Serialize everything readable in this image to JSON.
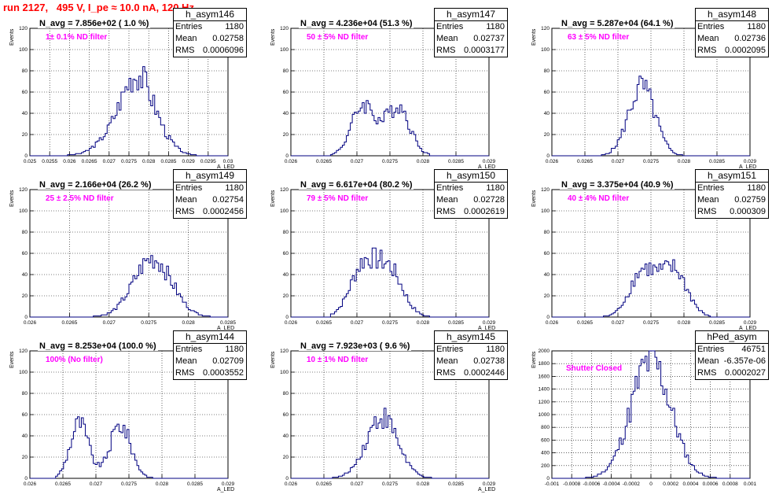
{
  "header": {
    "run_title": "run 2127,   495 V, I_pe ≈ 10.0 nA, 120 Hz"
  },
  "colors": {
    "title": "#ff0000",
    "note": "#ff00ff",
    "line": "#000080"
  },
  "chart_data": [
    {
      "type": "histogram",
      "name": "h_asym146",
      "stats": {
        "entries": "1180",
        "mean": "0.02758",
        "rms": "0.0006096"
      },
      "n_avg": "N_avg = 7.856e+02 ( 1.0 %)",
      "note": "1± 0.1% ND filter",
      "xlabel": "A_LED",
      "ylabel": "Events",
      "xlim": [
        0.025,
        0.03
      ],
      "ylim": [
        0,
        120
      ],
      "xticks": [
        "0.025",
        "0.0255",
        "0.026",
        "0.0265",
        "0.027",
        "0.0275",
        "0.028",
        "0.0285",
        "0.029",
        "0.0295",
        "0.03"
      ],
      "yticks": [
        "0",
        "20",
        "40",
        "60",
        "80",
        "100",
        "120"
      ],
      "grid": true,
      "shape": {
        "peaks": [
          [
            0.0274,
            30,
            0.0005
          ],
          [
            0.0277,
            40,
            0.00035
          ],
          [
            0.0281,
            20,
            0.0004
          ]
        ],
        "range": [
          0.0259,
          0.0295
        ]
      }
    },
    {
      "type": "histogram",
      "name": "h_asym147",
      "stats": {
        "entries": "1180",
        "mean": "0.02737",
        "rms": "0.0003177"
      },
      "n_avg": "N_avg = 4.236e+04 (51.3 %)",
      "note": "50 ± 5% ND filter",
      "xlabel": "A_LED",
      "ylabel": "Events",
      "xlim": [
        0.026,
        0.029
      ],
      "ylim": [
        0,
        120
      ],
      "xticks": [
        "0.026",
        "0.0265",
        "0.027",
        "0.0275",
        "0.028",
        "0.0285",
        "0.029"
      ],
      "yticks": [
        "0",
        "20",
        "40",
        "60",
        "80",
        "100",
        "120"
      ],
      "grid": true,
      "shape": {
        "peaks": [
          [
            0.0271,
            48,
            0.00018
          ],
          [
            0.02762,
            47,
            0.00018
          ]
        ],
        "range": [
          0.0266,
          0.0281
        ]
      }
    },
    {
      "type": "histogram",
      "name": "h_asym148",
      "stats": {
        "entries": "1180",
        "mean": "0.02736",
        "rms": "0.0002095"
      },
      "n_avg": "N_avg = 5.287e+04 (64.1 %)",
      "note": "63 ± 5% ND filter",
      "xlabel": "A_LED",
      "ylabel": "Events",
      "xlim": [
        0.026,
        0.029
      ],
      "ylim": [
        0,
        120
      ],
      "xticks": [
        "0.026",
        "0.0265",
        "0.027",
        "0.0275",
        "0.028",
        "0.0285",
        "0.029"
      ],
      "yticks": [
        "0",
        "20",
        "40",
        "60",
        "80",
        "100",
        "120"
      ],
      "grid": true,
      "shape": {
        "peaks": [
          [
            0.02736,
            65,
            0.0002
          ]
        ],
        "range": [
          0.0267,
          0.0281
        ]
      }
    },
    {
      "type": "histogram",
      "name": "h_asym149",
      "stats": {
        "entries": "1180",
        "mean": "0.02754",
        "rms": "0.0002456"
      },
      "n_avg": "N_avg = 2.166e+04 (26.2 %)",
      "note": "25 ± 2.5% ND filter",
      "xlabel": "A_LED",
      "ylabel": "Events",
      "xlim": [
        0.026,
        0.0285
      ],
      "ylim": [
        0,
        120
      ],
      "xticks": [
        "0.026",
        "0.0265",
        "0.027",
        "0.0275",
        "0.028",
        "0.0285"
      ],
      "yticks": [
        "0",
        "20",
        "40",
        "60",
        "80",
        "100",
        "120"
      ],
      "grid": true,
      "shape": {
        "peaks": [
          [
            0.02755,
            55,
            0.00024
          ]
        ],
        "range": [
          0.0268,
          0.0283
        ]
      }
    },
    {
      "type": "histogram",
      "name": "h_asym150",
      "stats": {
        "entries": "1180",
        "mean": "0.02728",
        "rms": "0.0002619"
      },
      "n_avg": "N_avg = 6.617e+04 (80.2 %)",
      "note": "79 ± 5% ND filter",
      "xlabel": "A_LED",
      "ylabel": "Events",
      "xlim": [
        0.026,
        0.029
      ],
      "ylim": [
        0,
        120
      ],
      "xticks": [
        "0.026",
        "0.0265",
        "0.027",
        "0.0275",
        "0.028",
        "0.0285",
        "0.029"
      ],
      "yticks": [
        "0",
        "20",
        "40",
        "60",
        "80",
        "100",
        "120"
      ],
      "grid": true,
      "shape": {
        "peaks": [
          [
            0.0271,
            48,
            0.0002
          ],
          [
            0.0275,
            42,
            0.0002
          ]
        ],
        "range": [
          0.0266,
          0.0281
        ]
      }
    },
    {
      "type": "histogram",
      "name": "h_asym151",
      "stats": {
        "entries": "1180",
        "mean": "0.02759",
        "rms": "0.000309"
      },
      "n_avg": "N_avg = 3.375e+04 (40.9 %)",
      "note": "40 ± 4% ND filter",
      "xlabel": "A_LED",
      "ylabel": "Events",
      "xlim": [
        0.026,
        0.029
      ],
      "ylim": [
        0,
        120
      ],
      "xticks": [
        "0.026",
        "0.0265",
        "0.027",
        "0.0275",
        "0.028",
        "0.0285",
        "0.029"
      ],
      "yticks": [
        "0",
        "20",
        "40",
        "60",
        "80",
        "100",
        "120"
      ],
      "grid": true,
      "shape": {
        "peaks": [
          [
            0.02738,
            43,
            0.0002
          ],
          [
            0.02785,
            43,
            0.0002
          ]
        ],
        "range": [
          0.0267,
          0.0284
        ]
      }
    },
    {
      "type": "histogram",
      "name": "h_asym144",
      "stats": {
        "entries": "1180",
        "mean": "0.02709",
        "rms": "0.0003552"
      },
      "n_avg": "N_avg = 8.253e+04 (100.0 %)",
      "note": "100% (No filter)",
      "xlabel": "A_LED",
      "ylabel": "Events",
      "xlim": [
        0.026,
        0.029
      ],
      "ylim": [
        0,
        120
      ],
      "xticks": [
        "0.026",
        "0.0265",
        "0.027",
        "0.0275",
        "0.028",
        "0.0285",
        "0.029"
      ],
      "yticks": [
        "0",
        "20",
        "40",
        "60",
        "80",
        "100",
        "120"
      ],
      "grid": true,
      "shape": {
        "peaks": [
          [
            0.02675,
            52,
            0.00014
          ],
          [
            0.02737,
            50,
            0.00016
          ]
        ],
        "range": [
          0.0264,
          0.0279
        ]
      }
    },
    {
      "type": "histogram",
      "name": "h_asym145",
      "stats": {
        "entries": "1180",
        "mean": "0.02738",
        "rms": "0.0002446"
      },
      "n_avg": "N_avg = 7.923e+03 ( 9.6 %)",
      "note": "10 ± 1% ND filter",
      "xlabel": "A_LED",
      "ylabel": "Events",
      "xlim": [
        0.026,
        0.029
      ],
      "ylim": [
        0,
        120
      ],
      "xticks": [
        "0.026",
        "0.0265",
        "0.027",
        "0.0275",
        "0.028",
        "0.0285",
        "0.029"
      ],
      "yticks": [
        "0",
        "20",
        "40",
        "60",
        "80",
        "100",
        "120"
      ],
      "grid": true,
      "shape": {
        "peaks": [
          [
            0.02738,
            58,
            0.00024
          ]
        ],
        "range": [
          0.0266,
          0.0282
        ]
      }
    },
    {
      "type": "histogram",
      "name": "hPed_asym",
      "stats": {
        "entries": "46751",
        "mean": "-6.357e-06",
        "rms": "0.0002027"
      },
      "n_avg": "",
      "note": "Shutter Closed",
      "xlabel": "",
      "ylabel": "Events",
      "xlim": [
        -0.001,
        0.001
      ],
      "ylim": [
        0,
        2000
      ],
      "xticks": [
        "-0.001",
        "-0.0008",
        "-0.0006",
        "-0.0004",
        "-0.0002",
        "0",
        "0.0002",
        "0.0004",
        "0.0006",
        "0.0008",
        "0.001"
      ],
      "yticks": [
        "0",
        "200",
        "400",
        "600",
        "800",
        "1000",
        "1200",
        "1400",
        "1600",
        "1800",
        "2000"
      ],
      "grid": true,
      "shape": {
        "peaks": [
          [
            0.0,
            1850,
            0.0002
          ]
        ],
        "range": [
          -0.0009,
          0.0009
        ]
      }
    }
  ]
}
